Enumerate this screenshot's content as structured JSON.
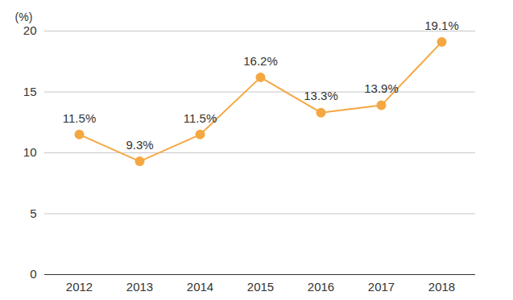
{
  "chart_data": {
    "type": "line",
    "categories": [
      "2012",
      "2013",
      "2014",
      "2015",
      "2016",
      "2017",
      "2018"
    ],
    "values": [
      11.5,
      9.3,
      11.5,
      16.2,
      13.3,
      13.9,
      19.1
    ],
    "value_labels": [
      "11.5%",
      "9.3%",
      "11.5%",
      "16.2%",
      "13.3%",
      "13.9%",
      "19.1%"
    ],
    "ylabel": "(%)",
    "color": "#f5a742",
    "marker": "circle",
    "ylim": [
      0,
      20
    ],
    "yticks": [
      0,
      5,
      10,
      15,
      20
    ],
    "grid": true,
    "data_labels": true
  }
}
